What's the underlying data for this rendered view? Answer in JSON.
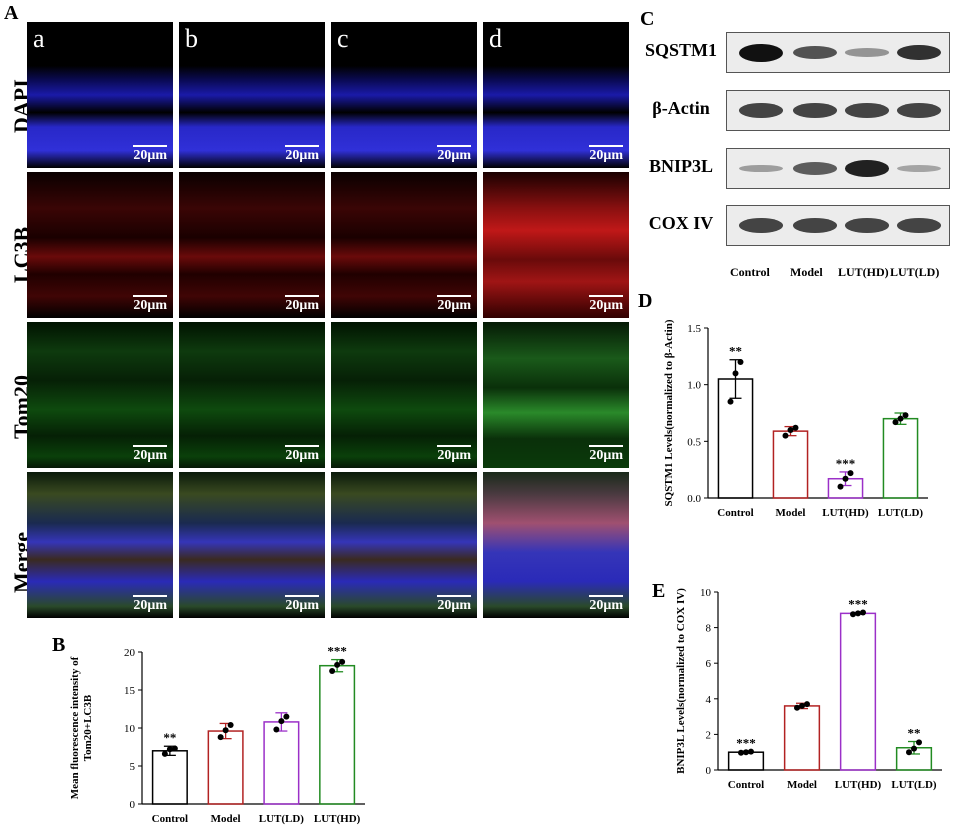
{
  "panelA": {
    "letter": "A",
    "row_labels": [
      "DAPI",
      "LC3B",
      "Tom20",
      "Merge"
    ],
    "col_labels": [
      "a",
      "b",
      "c",
      "d"
    ],
    "scale_bar": "20μm"
  },
  "panelC": {
    "letter": "C",
    "rows": [
      {
        "label": "SQSTM1",
        "intensity": [
          1.0,
          0.6,
          0.2,
          0.8
        ]
      },
      {
        "label": "β-Actin",
        "intensity": [
          0.7,
          0.7,
          0.7,
          0.7
        ]
      },
      {
        "label": "BNIP3L",
        "intensity": [
          0.15,
          0.55,
          0.9,
          0.1
        ]
      },
      {
        "label": "COX IV",
        "intensity": [
          0.7,
          0.7,
          0.7,
          0.7
        ]
      }
    ],
    "lanes": [
      "Control",
      "Model",
      "LUT(HD)",
      "LUT(LD)"
    ]
  },
  "chart_data": [
    {
      "panel": "B",
      "type": "bar",
      "categories": [
        "Control",
        "Model",
        "LUT(LD)",
        "LUT(HD)"
      ],
      "values": [
        7.0,
        9.6,
        10.8,
        18.2
      ],
      "errors": [
        0.6,
        1.0,
        1.2,
        0.8
      ],
      "points": [
        [
          6.6,
          7.2,
          7.3
        ],
        [
          8.8,
          9.7,
          10.4
        ],
        [
          9.8,
          10.9,
          11.5
        ],
        [
          17.5,
          18.3,
          18.7
        ]
      ],
      "significance": [
        "**",
        "",
        "",
        "***"
      ],
      "colors": [
        "#000000",
        "#b22222",
        "#9b30c8",
        "#228b22"
      ],
      "ylabel": "Mean fluorescence intensity of Tom20+LC3B",
      "ylim": [
        0,
        20
      ],
      "yticks": [
        0,
        5,
        10,
        15,
        20
      ]
    },
    {
      "panel": "D",
      "type": "bar",
      "categories": [
        "Control",
        "Model",
        "LUT(HD)",
        "LUT(LD)"
      ],
      "values": [
        1.05,
        0.59,
        0.17,
        0.7
      ],
      "errors": [
        0.17,
        0.04,
        0.06,
        0.05
      ],
      "points": [
        [
          0.85,
          1.1,
          1.2
        ],
        [
          0.55,
          0.6,
          0.62
        ],
        [
          0.1,
          0.17,
          0.22
        ],
        [
          0.67,
          0.7,
          0.73
        ]
      ],
      "significance": [
        "**",
        "",
        "***",
        ""
      ],
      "colors": [
        "#000000",
        "#b22222",
        "#9b30c8",
        "#228b22"
      ],
      "ylabel": "SQSTM1 Levels(normalized to β-Actin)",
      "ylim": [
        0,
        1.5
      ],
      "yticks": [
        0.0,
        0.5,
        1.0,
        1.5
      ]
    },
    {
      "panel": "E",
      "type": "bar",
      "categories": [
        "Control",
        "Model",
        "LUT(HD)",
        "LUT(LD)"
      ],
      "values": [
        1.0,
        3.6,
        8.8,
        1.25
      ],
      "errors": [
        0.05,
        0.15,
        0.05,
        0.35
      ],
      "points": [
        [
          0.97,
          1.0,
          1.03
        ],
        [
          3.5,
          3.6,
          3.7
        ],
        [
          8.75,
          8.8,
          8.85
        ],
        [
          1.0,
          1.2,
          1.55
        ]
      ],
      "significance": [
        "***",
        "",
        "***",
        "**"
      ],
      "colors": [
        "#000000",
        "#b22222",
        "#9b30c8",
        "#228b22"
      ],
      "ylabel": "BNIP3L Levels(normalized to COX IV)",
      "ylim": [
        0,
        10
      ],
      "yticks": [
        0,
        2,
        4,
        6,
        8,
        10
      ]
    }
  ]
}
